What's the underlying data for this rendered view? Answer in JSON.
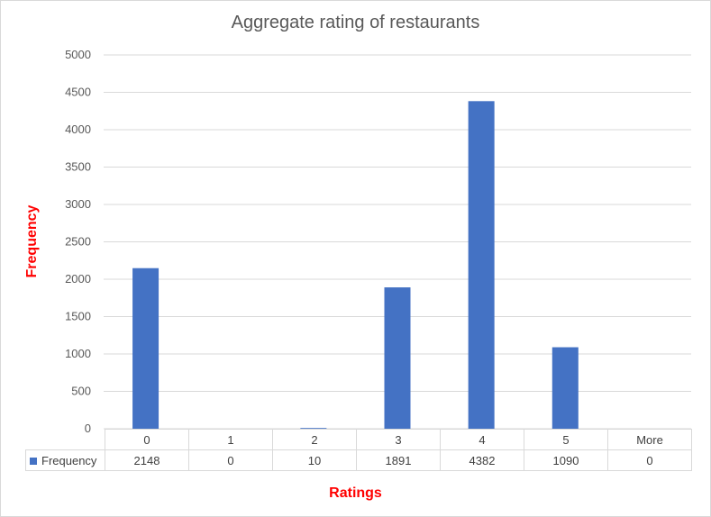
{
  "chart_data": {
    "type": "bar",
    "title": "Aggregate rating of restaurants",
    "xlabel": "Ratings",
    "ylabel": "Frequency",
    "categories": [
      "0",
      "1",
      "2",
      "3",
      "4",
      "5",
      "More"
    ],
    "series": [
      {
        "name": "Frequency",
        "values": [
          2148,
          0,
          10,
          1891,
          4382,
          1090,
          0
        ],
        "color": "#4472c4"
      }
    ],
    "ylim": [
      0,
      5000
    ],
    "yticks": [
      0,
      500,
      1000,
      1500,
      2000,
      2500,
      3000,
      3500,
      4000,
      4500,
      5000
    ],
    "grid": true,
    "legend": "data table below plot"
  }
}
